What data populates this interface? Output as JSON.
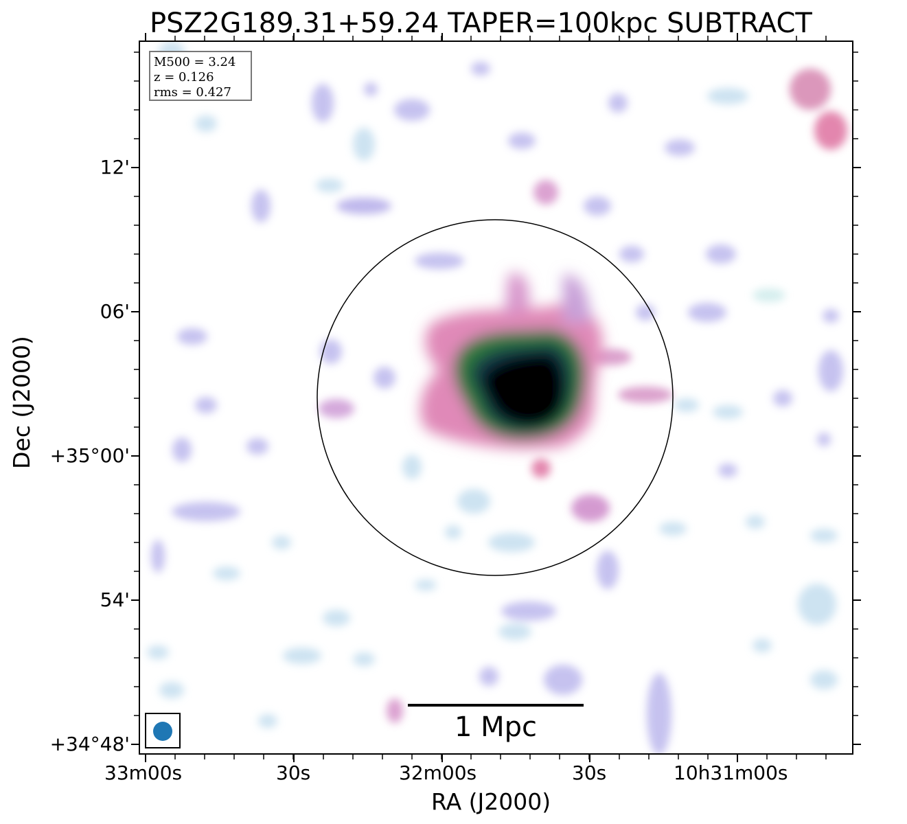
{
  "title": "PSZ2G189.31+59.24 TAPER=100kpc SUBTRACT",
  "axes": {
    "xlabel": "RA (J2000)",
    "ylabel": "Dec (J2000)",
    "xticks": [
      "33m00s",
      "30s",
      "32m00s",
      "30s",
      "10h31m00s"
    ],
    "yticks": [
      "12'",
      "06'",
      "+35°00'",
      "54'",
      "+34°48'"
    ]
  },
  "info": {
    "line1": "M500 = 3.24",
    "line2": "z = 0.126",
    "line3": "rms = 0.427"
  },
  "scale_bar": {
    "label": "1 Mpc"
  },
  "colors": {
    "beam": "#1f77b4",
    "circle": "#000000",
    "colormap": [
      "#ffffff",
      "#d8f0f0",
      "#b8d8ee",
      "#b8b0ea",
      "#d890d8",
      "#e07aa6",
      "#2e7a3c",
      "#123a4a",
      "#000000"
    ]
  }
}
